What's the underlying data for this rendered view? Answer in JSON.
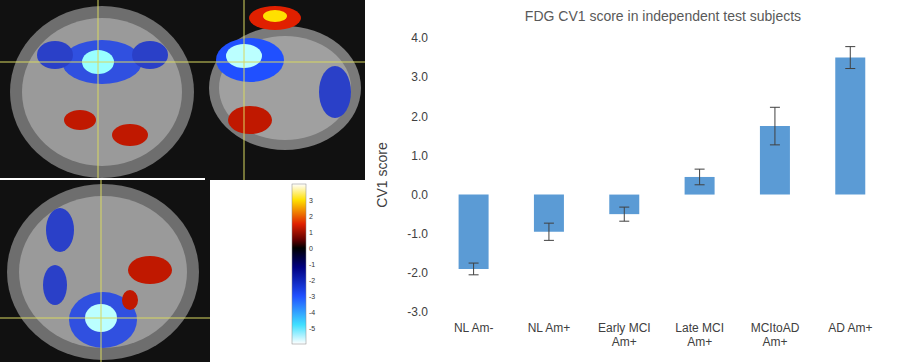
{
  "chart_data": [
    {
      "type": "image",
      "colorbar": {
        "range": [
          -6,
          4
        ],
        "ticks": [
          3,
          2,
          1,
          0,
          -1,
          -2,
          -3,
          -4,
          -5
        ]
      }
    },
    {
      "type": "bar",
      "title": "FDG CV1 score in independent test subjects",
      "y_label": "CV1 score",
      "categories": [
        "NL Am-",
        "NL Am+",
        "Early MCI Am+",
        "Late MCI Am+",
        "MCItoAD Am+",
        "AD Am+"
      ],
      "values": [
        -1.9,
        -0.95,
        -0.5,
        0.45,
        1.75,
        3.5
      ],
      "errors": [
        0.15,
        0.22,
        0.18,
        0.2,
        0.48,
        0.28
      ],
      "color": "#5b9bd5",
      "ylim": [
        -3,
        4
      ],
      "yticks": [
        {
          "value": -3,
          "label": "-3.0"
        },
        {
          "value": -2,
          "label": "-2.0"
        },
        {
          "value": -1,
          "label": "-1.0"
        },
        {
          "value": 0,
          "label": "0.0"
        },
        {
          "value": 1,
          "label": "1.0"
        },
        {
          "value": 2,
          "label": "2.0"
        },
        {
          "value": 3,
          "label": "3.0"
        },
        {
          "value": 4,
          "label": "4.0"
        }
      ],
      "grid": false
    }
  ]
}
